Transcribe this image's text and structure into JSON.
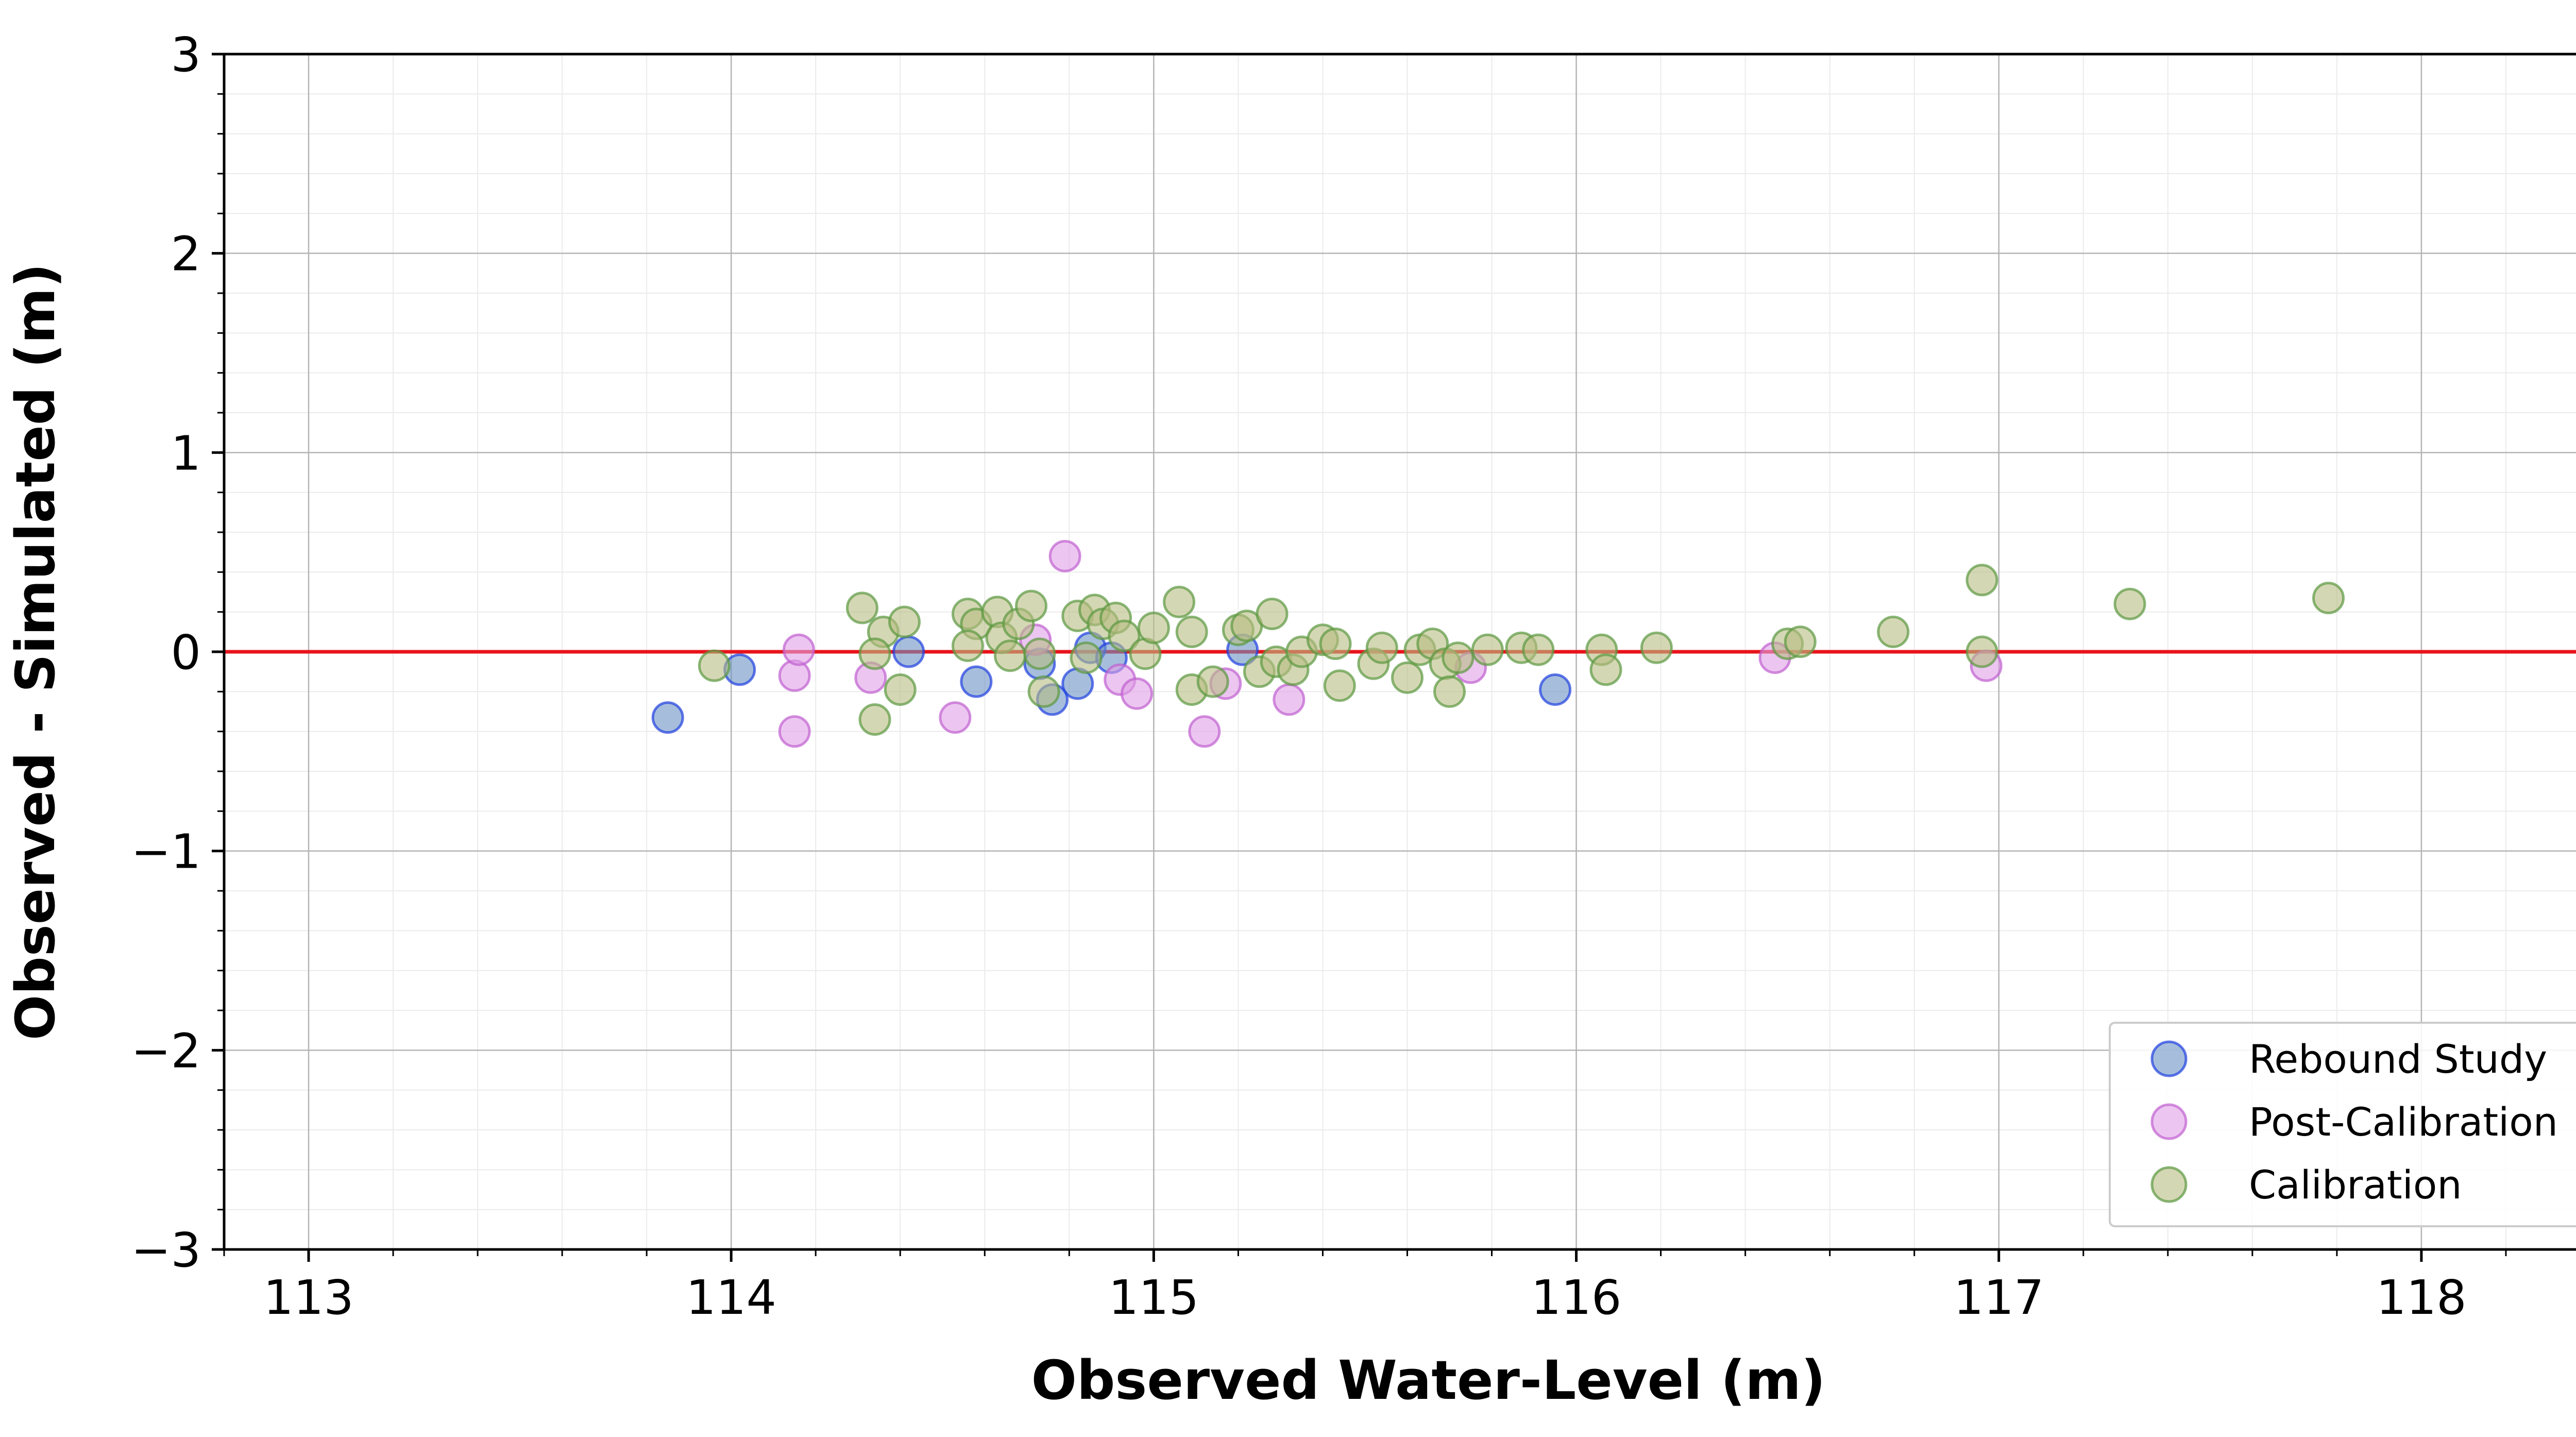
{
  "chart_data": {
    "type": "scatter",
    "title": "",
    "xlabel": "Observed Water-Level (m)",
    "ylabel": "Observed - Simulated (m)",
    "xlim": [
      112.8,
      118.5
    ],
    "ylim": [
      -3,
      3
    ],
    "xticks": [
      113,
      114,
      115,
      116,
      117,
      118
    ],
    "xtick_labels": [
      "113",
      "114",
      "115",
      "116",
      "117",
      "118"
    ],
    "yticks": [
      -3,
      -2,
      -1,
      0,
      1,
      2,
      3
    ],
    "ytick_labels": [
      "−3",
      "−2",
      "−1",
      "0",
      "1",
      "2",
      "3"
    ],
    "grid": "major and minor",
    "reference_line": {
      "y": 0,
      "color": "#e8141b"
    },
    "legend": {
      "position": "lower-right"
    },
    "series": [
      {
        "name": "Rebound Study",
        "fill": "#6b93c4",
        "edge": "#1f3fe0",
        "points": [
          [
            113.85,
            -0.33
          ],
          [
            114.02,
            -0.09
          ],
          [
            114.42,
            0.0
          ],
          [
            114.58,
            -0.15
          ],
          [
            114.73,
            -0.06
          ],
          [
            114.76,
            -0.24
          ],
          [
            114.82,
            -0.16
          ],
          [
            114.85,
            0.02
          ],
          [
            114.9,
            -0.03
          ],
          [
            115.21,
            0.01
          ],
          [
            115.95,
            -0.19
          ]
        ]
      },
      {
        "name": "Post-Calibration",
        "fill": "#dfa0e6",
        "edge": "#c060d0",
        "points": [
          [
            114.15,
            -0.12
          ],
          [
            114.16,
            0.01
          ],
          [
            114.15,
            -0.4
          ],
          [
            114.33,
            -0.13
          ],
          [
            114.53,
            -0.33
          ],
          [
            114.72,
            0.06
          ],
          [
            114.79,
            0.48
          ],
          [
            114.92,
            -0.14
          ],
          [
            114.96,
            -0.21
          ],
          [
            115.12,
            -0.4
          ],
          [
            115.17,
            -0.16
          ],
          [
            115.32,
            -0.24
          ],
          [
            115.75,
            -0.08
          ],
          [
            116.47,
            -0.03
          ],
          [
            116.97,
            -0.07
          ]
        ]
      },
      {
        "name": "Calibration",
        "fill": "#b8bd82",
        "edge": "#5b9840",
        "points": [
          [
            113.96,
            -0.07
          ],
          [
            114.31,
            0.22
          ],
          [
            114.36,
            0.1
          ],
          [
            114.34,
            -0.01
          ],
          [
            114.41,
            0.15
          ],
          [
            114.4,
            -0.19
          ],
          [
            114.34,
            -0.34
          ],
          [
            114.56,
            0.19
          ],
          [
            114.58,
            0.14
          ],
          [
            114.56,
            0.03
          ],
          [
            114.63,
            0.2
          ],
          [
            114.64,
            0.07
          ],
          [
            114.66,
            -0.02
          ],
          [
            114.68,
            0.14
          ],
          [
            114.71,
            0.23
          ],
          [
            114.73,
            -0.01
          ],
          [
            114.74,
            -0.2
          ],
          [
            114.82,
            0.18
          ],
          [
            114.84,
            -0.03
          ],
          [
            114.86,
            0.21
          ],
          [
            114.88,
            0.14
          ],
          [
            114.91,
            0.17
          ],
          [
            114.93,
            0.08
          ],
          [
            114.98,
            -0.01
          ],
          [
            115.0,
            0.12
          ],
          [
            115.06,
            0.25
          ],
          [
            115.09,
            0.1
          ],
          [
            115.09,
            -0.19
          ],
          [
            115.14,
            -0.15
          ],
          [
            115.2,
            0.11
          ],
          [
            115.22,
            0.13
          ],
          [
            115.25,
            -0.1
          ],
          [
            115.28,
            0.19
          ],
          [
            115.29,
            -0.05
          ],
          [
            115.33,
            -0.09
          ],
          [
            115.35,
            0.0
          ],
          [
            115.4,
            0.06
          ],
          [
            115.43,
            0.04
          ],
          [
            115.44,
            -0.17
          ],
          [
            115.52,
            -0.06
          ],
          [
            115.54,
            0.02
          ],
          [
            115.6,
            -0.13
          ],
          [
            115.63,
            0.01
          ],
          [
            115.66,
            0.04
          ],
          [
            115.69,
            -0.06
          ],
          [
            115.7,
            -0.2
          ],
          [
            115.72,
            -0.03
          ],
          [
            115.79,
            0.01
          ],
          [
            115.87,
            0.02
          ],
          [
            115.91,
            0.01
          ],
          [
            116.06,
            0.01
          ],
          [
            116.07,
            -0.09
          ],
          [
            116.19,
            0.02
          ],
          [
            116.5,
            0.04
          ],
          [
            116.53,
            0.05
          ],
          [
            116.75,
            0.1
          ],
          [
            116.96,
            0.36
          ],
          [
            116.96,
            0.0
          ],
          [
            117.31,
            0.24
          ],
          [
            117.78,
            0.27
          ]
        ]
      }
    ]
  }
}
